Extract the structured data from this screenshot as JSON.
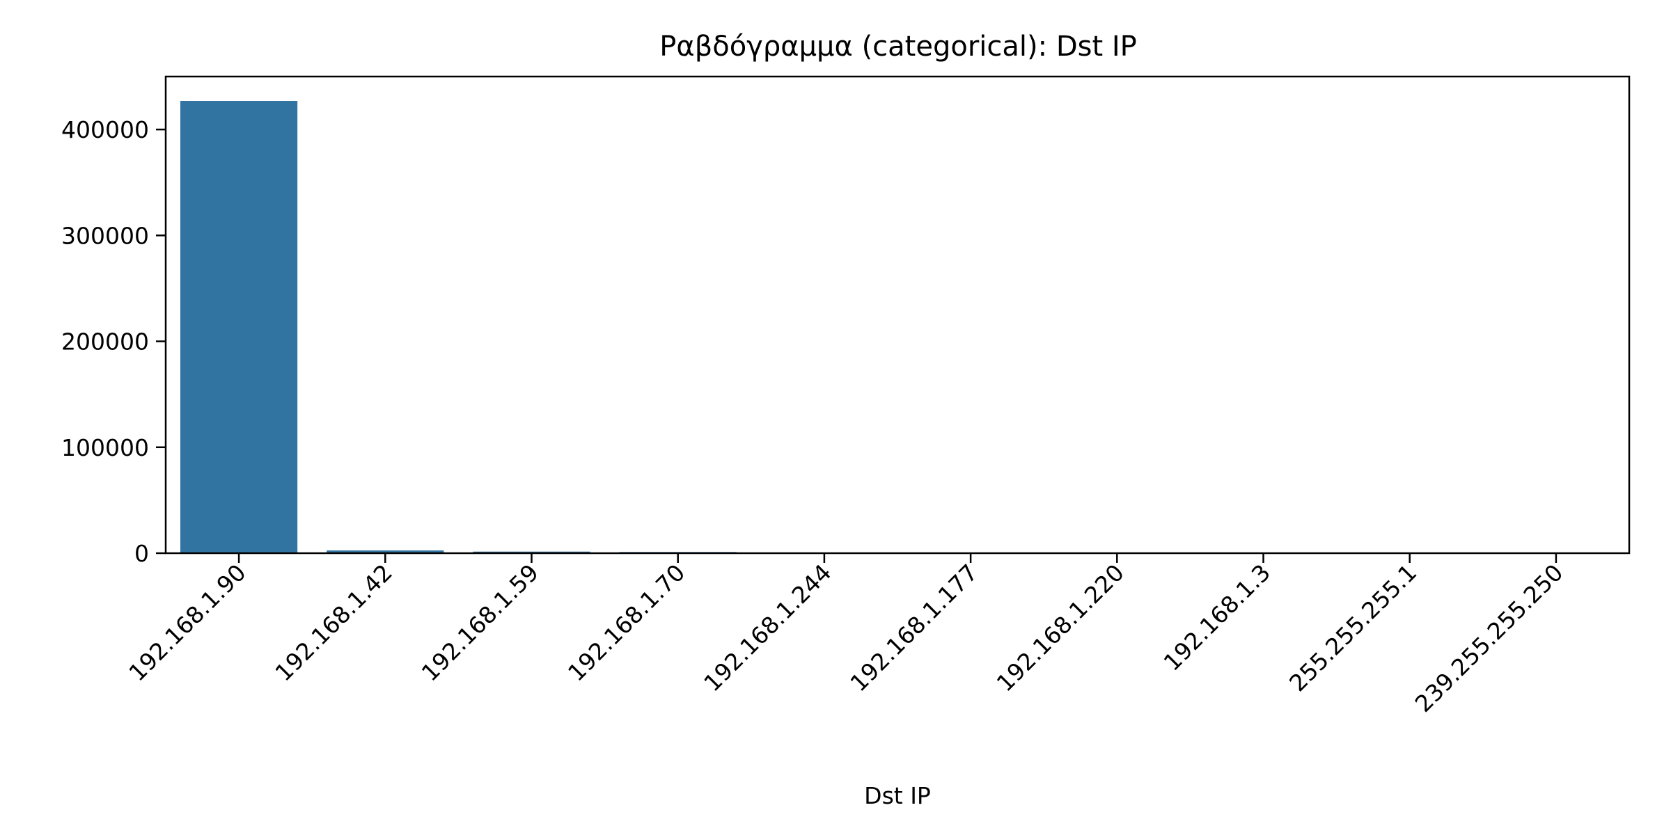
{
  "chart_data": {
    "type": "bar",
    "title": "Ραβδόγραμμα (categorical): Dst IP",
    "xlabel": "Dst IP",
    "ylabel": "",
    "categories": [
      "192.168.1.90",
      "192.168.1.42",
      "192.168.1.59",
      "192.168.1.70",
      "192.168.1.244",
      "192.168.1.177",
      "192.168.1.220",
      "192.168.1.3",
      "255.255.255.1",
      "239.255.255.250"
    ],
    "values": [
      427000,
      2600,
      1500,
      1100,
      300,
      200,
      150,
      100,
      50,
      30
    ],
    "ylim": [
      0,
      450000
    ],
    "yticks": [
      0,
      100000,
      200000,
      300000,
      400000
    ],
    "ytick_labels": [
      "0",
      "100000",
      "200000",
      "300000",
      "400000"
    ],
    "bar_color": "#3274a1",
    "grid": false,
    "legend": "none"
  }
}
